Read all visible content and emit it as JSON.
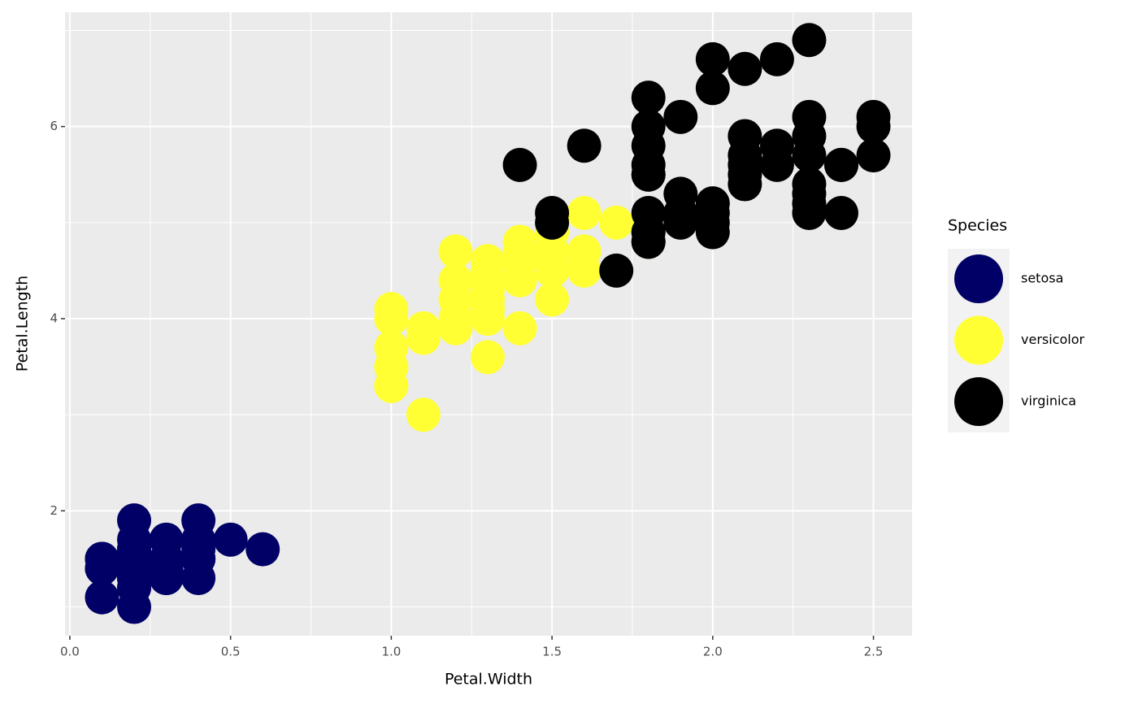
{
  "chart_data": {
    "type": "scatter",
    "x_label": "Petal.Width",
    "y_label": "Petal.Length",
    "legend_title": "Species",
    "xlim": [
      -0.015,
      2.62
    ],
    "ylim": [
      0.7,
      7.19
    ],
    "xticks": [
      {
        "value": 0,
        "label": "0.0"
      },
      0.5,
      {
        "value": 1,
        "label": "1.0"
      },
      1.5,
      {
        "value": 2,
        "label": "2.0"
      },
      2.5
    ],
    "yticks": [
      2,
      4,
      6
    ],
    "x_minor_grid": [
      0.25,
      0.75,
      1.25,
      1.75,
      2.25
    ],
    "y_minor_grid": [
      1,
      3,
      5,
      7
    ],
    "grid": true,
    "legend": "right",
    "series": [
      {
        "name": "setosa",
        "color": "#000066",
        "x": [
          0.2,
          0.2,
          0.2,
          0.2,
          0.2,
          0.4,
          0.3,
          0.2,
          0.2,
          0.1,
          0.2,
          0.2,
          0.1,
          0.1,
          0.2,
          0.4,
          0.4,
          0.3,
          0.3,
          0.3,
          0.2,
          0.4,
          0.2,
          0.5,
          0.2,
          0.2,
          0.4,
          0.2,
          0.2,
          0.2,
          0.2,
          0.4,
          0.1,
          0.2,
          0.2,
          0.2,
          0.2,
          0.1,
          0.2,
          0.2,
          0.3,
          0.3,
          0.2,
          0.6,
          0.4,
          0.3,
          0.2,
          0.2,
          0.2,
          0.2
        ],
        "y": [
          1.4,
          1.4,
          1.3,
          1.5,
          1.4,
          1.7,
          1.4,
          1.5,
          1.4,
          1.5,
          1.5,
          1.6,
          1.4,
          1.1,
          1.2,
          1.5,
          1.3,
          1.4,
          1.7,
          1.5,
          1.7,
          1.5,
          1.0,
          1.7,
          1.9,
          1.6,
          1.6,
          1.5,
          1.4,
          1.6,
          1.6,
          1.5,
          1.5,
          1.4,
          1.5,
          1.2,
          1.3,
          1.4,
          1.3,
          1.5,
          1.3,
          1.3,
          1.3,
          1.6,
          1.9,
          1.4,
          1.6,
          1.4,
          1.5,
          1.4
        ]
      },
      {
        "name": "versicolor",
        "color": "#ffff33",
        "x": [
          1.4,
          1.5,
          1.5,
          1.3,
          1.5,
          1.3,
          1.6,
          1.0,
          1.3,
          1.4,
          1.0,
          1.5,
          1.0,
          1.4,
          1.3,
          1.4,
          1.5,
          1.0,
          1.5,
          1.1,
          1.8,
          1.3,
          1.5,
          1.2,
          1.3,
          1.4,
          1.4,
          1.7,
          1.5,
          1.0,
          1.1,
          1.0,
          1.2,
          1.6,
          1.5,
          1.6,
          1.5,
          1.3,
          1.3,
          1.3,
          1.2,
          1.4,
          1.2,
          1.0,
          1.3,
          1.2,
          1.3,
          1.3,
          1.1,
          1.3
        ],
        "y": [
          4.7,
          4.5,
          4.9,
          4.0,
          4.6,
          4.5,
          4.7,
          3.3,
          4.6,
          3.9,
          3.5,
          4.2,
          4.0,
          4.7,
          3.6,
          4.4,
          4.5,
          4.1,
          4.5,
          3.9,
          4.8,
          4.0,
          4.9,
          4.7,
          4.3,
          4.4,
          4.8,
          5.0,
          4.5,
          3.5,
          3.8,
          3.7,
          3.9,
          5.1,
          4.5,
          4.5,
          4.7,
          4.4,
          4.1,
          4.0,
          4.4,
          4.6,
          4.0,
          3.3,
          4.2,
          4.2,
          4.2,
          4.3,
          3.0,
          4.1
        ]
      },
      {
        "name": "virginica",
        "color": "#000000",
        "x": [
          2.5,
          1.9,
          2.1,
          1.8,
          2.2,
          2.1,
          1.7,
          1.8,
          1.8,
          2.5,
          2.0,
          1.9,
          2.1,
          2.0,
          2.4,
          2.3,
          1.8,
          2.2,
          2.3,
          1.5,
          2.3,
          2.0,
          2.0,
          1.8,
          2.1,
          1.8,
          1.8,
          1.8,
          2.1,
          1.6,
          1.9,
          2.0,
          2.2,
          1.5,
          1.4,
          2.3,
          2.4,
          1.8,
          1.8,
          2.1,
          2.4,
          2.3,
          1.9,
          2.3,
          2.5,
          2.3,
          1.9,
          2.0,
          2.3,
          1.8
        ],
        "y": [
          6.0,
          5.1,
          5.9,
          5.6,
          5.8,
          6.6,
          4.5,
          6.3,
          5.8,
          6.1,
          5.1,
          5.3,
          5.5,
          5.0,
          5.1,
          5.3,
          5.5,
          6.7,
          6.9,
          5.0,
          5.7,
          4.9,
          6.7,
          4.9,
          5.7,
          6.0,
          4.8,
          4.9,
          5.6,
          5.8,
          6.1,
          6.4,
          5.6,
          5.1,
          5.6,
          6.1,
          5.6,
          5.5,
          4.8,
          5.4,
          5.6,
          5.1,
          5.1,
          5.9,
          5.7,
          5.2,
          5.0,
          5.2,
          5.4,
          5.1
        ]
      }
    ]
  }
}
